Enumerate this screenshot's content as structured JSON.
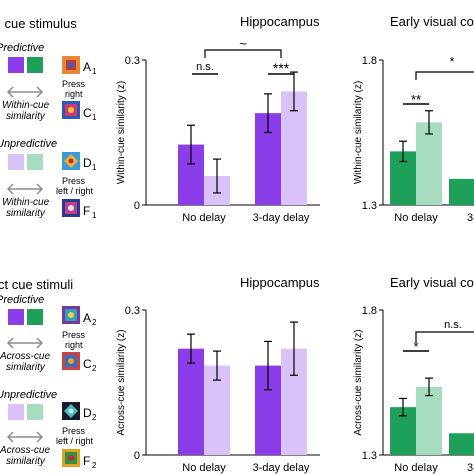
{
  "colors": {
    "purple_dark": "#8a3de8",
    "purple_light": "#d9c2f7",
    "green_dark": "#1fa05a",
    "green_light": "#a8dcc0",
    "arrow": "#8c8c8c"
  },
  "legend": {
    "top": {
      "heading": "l cue stimulus",
      "predictive_label": "Predictive",
      "unpredictive_label": "Unpredictive",
      "similarity_label_1": "Within-cue",
      "similarity_label_2": "similarity",
      "stim_A": "A",
      "stim_A_sub": "1",
      "stim_C": "C",
      "stim_C_sub": "1",
      "stim_D": "D",
      "stim_D_sub": "1",
      "stim_F": "F",
      "stim_F_sub": "1",
      "press_right_1": "Press",
      "press_right_2": "right",
      "press_lr_1": "Press",
      "press_lr_2": "left / right"
    },
    "bottom": {
      "heading": "ct cue stimuli",
      "predictive_label": "Predictive",
      "unpredictive_label": "Unpredictive",
      "similarity_label_1": "Across-cue",
      "similarity_label_2": "similarity",
      "stim_A": "A",
      "stim_A_sub": "2",
      "stim_C": "C",
      "stim_C_sub": "2",
      "stim_D": "D",
      "stim_D_sub": "2",
      "stim_F": "F",
      "stim_F_sub": "2",
      "press_right_1": "Press",
      "press_right_2": "right",
      "press_lr_1": "Press",
      "press_lr_2": "left / right"
    }
  },
  "chart_data": [
    {
      "type": "bar",
      "title": "Hippocampus",
      "ylabel": "Within-cue similarity (z)",
      "ylim": [
        0,
        0.3
      ],
      "yticks": [
        "0",
        "0.3"
      ],
      "categories": [
        "No delay",
        "3-day delay"
      ],
      "series": [
        {
          "values": [
            0.125,
            0.19
          ],
          "errors": [
            0.04,
            0.04
          ],
          "color": "#8a3de8"
        },
        {
          "values": [
            0.06,
            0.235
          ],
          "errors": [
            0.035,
            0.04
          ],
          "color": "#d9c2f7"
        }
      ],
      "annotations": {
        "sig_no_delay": "n.s.",
        "sig_3day": "***",
        "sig_across": "~"
      }
    },
    {
      "type": "bar",
      "title": "Early visual co",
      "ylabel": "Within-cue similarity (z)",
      "ylim": [
        1.3,
        1.8
      ],
      "yticks": [
        "1.3",
        "1.8"
      ],
      "categories": [
        "No delay",
        "3-d"
      ],
      "series": [
        {
          "values": [
            1.485,
            1.39
          ],
          "errors": [
            0.035,
            0
          ],
          "color": "#1fa05a"
        },
        {
          "values": [
            1.585,
            null
          ],
          "errors": [
            0.04,
            0
          ],
          "color": "#a8dcc0"
        }
      ],
      "annotations": {
        "sig_no_delay": "**",
        "sig_across": "*"
      }
    },
    {
      "type": "bar",
      "title": "Hippocampus",
      "ylabel": "Across-cue similarity (z)",
      "ylim": [
        0,
        0.3
      ],
      "yticks": [
        "0",
        "0.3"
      ],
      "categories": [
        "No delay",
        "3-day delay"
      ],
      "series": [
        {
          "values": [
            0.22,
            0.185
          ],
          "errors": [
            0.03,
            0.05
          ],
          "color": "#8a3de8"
        },
        {
          "values": [
            0.185,
            0.22
          ],
          "errors": [
            0.03,
            0.055
          ],
          "color": "#d9c2f7"
        }
      ],
      "annotations": {}
    },
    {
      "type": "bar",
      "title": "Early visual co",
      "ylabel": "Across-cue similarity (z)",
      "ylim": [
        1.3,
        1.8
      ],
      "yticks": [
        "1.3",
        "1.8"
      ],
      "categories": [
        "No delay",
        "3-d"
      ],
      "series": [
        {
          "values": [
            1.465,
            1.375
          ],
          "errors": [
            0.03,
            0
          ],
          "color": "#1fa05a"
        },
        {
          "values": [
            1.535,
            null
          ],
          "errors": [
            0.03,
            0
          ],
          "color": "#a8dcc0"
        }
      ],
      "annotations": {
        "sig_no_delay": "*",
        "sig_across": "n.s."
      }
    }
  ]
}
